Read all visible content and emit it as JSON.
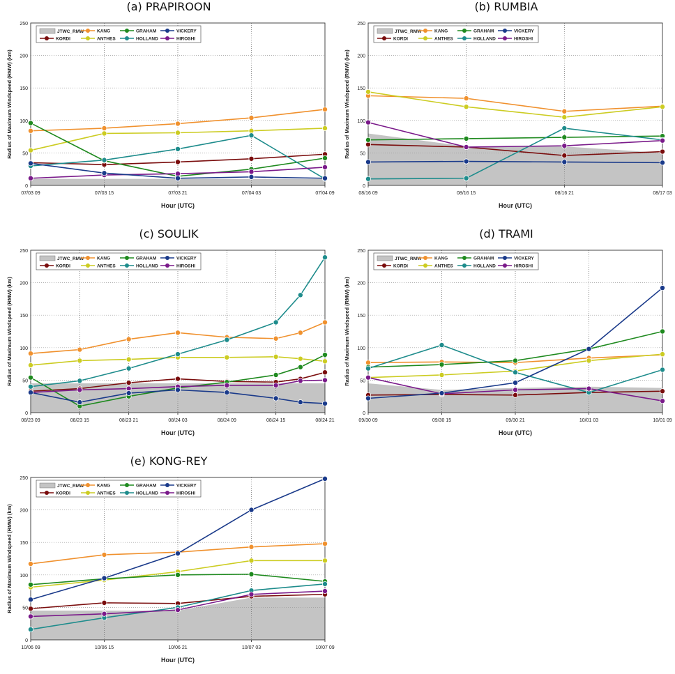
{
  "colors": {
    "JTWC_RMW": "#c4c4c4",
    "KORDI": "#7a0d0d",
    "KANG": "#f0912e",
    "ANTHES": "#cccc22",
    "GRAHAM": "#1f8a1f",
    "HOLLAND": "#1e8c8c",
    "HIROSHI": "#7a1a8a",
    "VICKERY": "#1a3a8a"
  },
  "legend": {
    "area_label": "JTWC_RMW",
    "entries": [
      "KANG",
      "GRAHAM",
      "VICKERY",
      "KORDI",
      "ANTHES",
      "HOLLAND",
      "HIROSHI"
    ]
  },
  "chart_data": [
    {
      "type": "line",
      "title": "(a) PRAPIROON",
      "xlabel": "Hour (UTC)",
      "ylabel": "Radius of Maximum Windspeed (RMW) (km)",
      "ylim": [
        0,
        250
      ],
      "yticks": [
        0,
        50,
        100,
        150,
        200,
        250
      ],
      "categories": [
        "07/03 09",
        "07/03 15",
        "07/03 21",
        "07/04 03",
        "07/04 09"
      ],
      "area": {
        "name": "JTWC_RMW",
        "values": [
          10,
          10,
          10,
          10,
          10
        ]
      },
      "series": [
        {
          "name": "KORDI",
          "values": [
            35,
            32,
            36,
            41,
            48
          ]
        },
        {
          "name": "KANG",
          "values": [
            84,
            88,
            95,
            104,
            117
          ]
        },
        {
          "name": "ANTHES",
          "values": [
            54,
            80,
            81,
            84,
            88
          ]
        },
        {
          "name": "GRAHAM",
          "values": [
            96,
            38,
            14,
            25,
            42
          ]
        },
        {
          "name": "HOLLAND",
          "values": [
            30,
            39,
            56,
            77,
            10
          ]
        },
        {
          "name": "HIROSHI",
          "values": [
            11,
            16,
            18,
            21,
            28
          ]
        },
        {
          "name": "VICKERY",
          "values": [
            34,
            19,
            11,
            13,
            11
          ]
        }
      ]
    },
    {
      "type": "line",
      "title": "(b) RUMBIA",
      "xlabel": "Hour (UTC)",
      "ylabel": "Radius of Maximum Windspeed (RMW) (km)",
      "ylim": [
        0,
        250
      ],
      "yticks": [
        0,
        50,
        100,
        150,
        200,
        250
      ],
      "categories": [
        "08/16 09",
        "08/16 15",
        "08/16 21",
        "08/17 03"
      ],
      "area": {
        "name": "JTWC_RMW",
        "values": [
          80,
          60,
          60,
          50
        ]
      },
      "series": [
        {
          "name": "KORDI",
          "values": [
            63,
            59,
            46,
            52
          ]
        },
        {
          "name": "KANG",
          "values": [
            138,
            134,
            114,
            122
          ]
        },
        {
          "name": "ANTHES",
          "values": [
            144,
            121,
            105,
            121
          ]
        },
        {
          "name": "GRAHAM",
          "values": [
            70,
            72,
            74,
            76
          ]
        },
        {
          "name": "HOLLAND",
          "values": [
            10,
            11,
            88,
            70
          ]
        },
        {
          "name": "HIROSHI",
          "values": [
            97,
            59,
            61,
            69
          ]
        },
        {
          "name": "VICKERY",
          "values": [
            36,
            37,
            36,
            35
          ]
        }
      ]
    },
    {
      "type": "line",
      "title": "(c) SOULIK",
      "xlabel": "Hour (UTC)",
      "ylabel": "Radius of Maximum Windspeed (RMW) (km)",
      "ylim": [
        0,
        250
      ],
      "yticks": [
        0,
        50,
        100,
        150,
        200,
        250
      ],
      "categories": [
        "08/23 09",
        "08/23 15",
        "08/23 21",
        "08/24 03",
        "08/24 09",
        "08/24 15",
        "08/24 21"
      ],
      "x": [
        0,
        1,
        2,
        3,
        4,
        5,
        5.5,
        6
      ],
      "area": {
        "name": "JTWC_RMW",
        "values": [
          45,
          45,
          45,
          45,
          45,
          45,
          45,
          45
        ]
      },
      "series": [
        {
          "name": "KORDI",
          "values": [
            33,
            37,
            46,
            52,
            48,
            47,
            52,
            62
          ]
        },
        {
          "name": "KANG",
          "values": [
            91,
            97,
            113,
            123,
            116,
            114,
            123,
            139
          ]
        },
        {
          "name": "ANTHES",
          "values": [
            73,
            80,
            82,
            85,
            85,
            86,
            83,
            79
          ]
        },
        {
          "name": "GRAHAM",
          "values": [
            54,
            10,
            25,
            38,
            47,
            58,
            70,
            89
          ]
        },
        {
          "name": "HOLLAND",
          "values": [
            40,
            49,
            68,
            90,
            112,
            139,
            181,
            239
          ]
        },
        {
          "name": "HIROSHI",
          "values": [
            31,
            35,
            37,
            40,
            42,
            42,
            49,
            50
          ]
        },
        {
          "name": "VICKERY",
          "values": [
            31,
            16,
            30,
            35,
            31,
            22,
            16,
            14
          ]
        }
      ]
    },
    {
      "type": "line",
      "title": "(d) TRAMI",
      "xlabel": "Hour (UTC)",
      "ylabel": "Radius of Maximum Windspeed (RMW) (km)",
      "ylim": [
        0,
        250
      ],
      "yticks": [
        0,
        50,
        100,
        150,
        200,
        250
      ],
      "categories": [
        "09/30 09",
        "09/30 15",
        "09/30 21",
        "10/01 03",
        "10/01 09"
      ],
      "area": {
        "name": "JTWC_RMW",
        "values": [
          45,
          35,
          38,
          40,
          38
        ]
      },
      "series": [
        {
          "name": "KORDI",
          "values": [
            27,
            28,
            27,
            31,
            33
          ]
        },
        {
          "name": "KANG",
          "values": [
            77,
            78,
            77,
            84,
            89
          ]
        },
        {
          "name": "ANTHES",
          "values": [
            54,
            58,
            64,
            80,
            90
          ]
        },
        {
          "name": "GRAHAM",
          "values": [
            70,
            74,
            80,
            98,
            125
          ]
        },
        {
          "name": "HOLLAND",
          "values": [
            68,
            104,
            62,
            31,
            66
          ]
        },
        {
          "name": "HIROSHI",
          "values": [
            54,
            29,
            35,
            37,
            18
          ]
        },
        {
          "name": "VICKERY",
          "values": [
            22,
            30,
            46,
            98,
            192
          ]
        }
      ]
    },
    {
      "type": "line",
      "title": "(e) KONG-REY",
      "xlabel": "Hour (UTC)",
      "ylabel": "Radius of Maximum Windspeed (RMW) (km)",
      "ylim": [
        0,
        250
      ],
      "yticks": [
        0,
        50,
        100,
        150,
        200,
        250
      ],
      "categories": [
        "10/06 09",
        "10/06 15",
        "10/06 21",
        "10/07 03",
        "10/07 09"
      ],
      "area": {
        "name": "JTWC_RMW",
        "values": [
          45,
          45,
          45,
          65,
          65
        ]
      },
      "series": [
        {
          "name": "KORDI",
          "values": [
            48,
            57,
            56,
            67,
            70
          ]
        },
        {
          "name": "KANG",
          "values": [
            117,
            131,
            135,
            143,
            148
          ]
        },
        {
          "name": "ANTHES",
          "values": [
            81,
            92,
            105,
            122,
            122
          ]
        },
        {
          "name": "GRAHAM",
          "values": [
            85,
            94,
            100,
            101,
            90
          ]
        },
        {
          "name": "HOLLAND",
          "values": [
            16,
            34,
            50,
            76,
            86
          ]
        },
        {
          "name": "HIROSHI",
          "values": [
            36,
            40,
            46,
            70,
            75
          ]
        },
        {
          "name": "VICKERY",
          "values": [
            62,
            95,
            133,
            200,
            248
          ]
        }
      ]
    }
  ]
}
